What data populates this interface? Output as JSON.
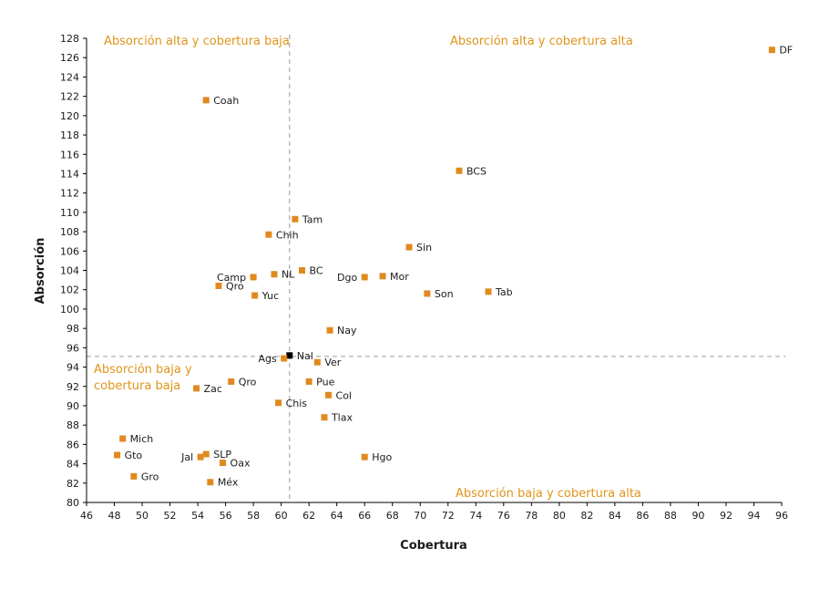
{
  "chart_data": {
    "type": "scatter",
    "xlabel": "Cobertura",
    "ylabel": "Absorción",
    "xlim": [
      46,
      96
    ],
    "ylim": [
      80,
      128
    ],
    "x_ticks": [
      46,
      48,
      50,
      52,
      54,
      56,
      58,
      60,
      62,
      64,
      66,
      68,
      70,
      72,
      74,
      76,
      78,
      80,
      82,
      84,
      86,
      88,
      90,
      92,
      94,
      96
    ],
    "y_ticks": [
      80,
      82,
      84,
      86,
      88,
      90,
      92,
      94,
      96,
      98,
      100,
      102,
      104,
      106,
      108,
      110,
      112,
      114,
      116,
      118,
      120,
      122,
      124,
      126,
      128
    ],
    "reference_lines": {
      "x": 60.6,
      "y": 95.1
    },
    "quadrant_labels": {
      "top_left": "Absorción alta y cobertura baja",
      "top_right": "Absorción alta y cobertura alta",
      "bottom_left_line1": "Absorción baja y",
      "bottom_left_line2": "cobertura baja",
      "bottom_right": "Absorción baja y cobertura alta"
    },
    "colors": {
      "point": "#e08a1e",
      "national": "#000000",
      "quadrant_text": "#e0941a",
      "reference_line": "#999999"
    },
    "points": [
      {
        "label": "DF",
        "x": 95.3,
        "y": 126.8
      },
      {
        "label": "Coah",
        "x": 54.6,
        "y": 121.6
      },
      {
        "label": "BCS",
        "x": 72.8,
        "y": 114.3
      },
      {
        "label": "Tam",
        "x": 61.0,
        "y": 109.3
      },
      {
        "label": "Chih",
        "x": 59.1,
        "y": 107.7
      },
      {
        "label": "Sin",
        "x": 69.2,
        "y": 106.4
      },
      {
        "label": "BC",
        "x": 61.5,
        "y": 104.0
      },
      {
        "label": "NL",
        "x": 59.5,
        "y": 103.6
      },
      {
        "label": "Camp",
        "x": 58.0,
        "y": 103.3
      },
      {
        "label": "Dgo",
        "x": 66.0,
        "y": 103.3
      },
      {
        "label": "Mor",
        "x": 67.3,
        "y": 103.4
      },
      {
        "label": "Qro",
        "x": 55.5,
        "y": 102.4
      },
      {
        "label": "Son",
        "x": 70.5,
        "y": 101.6
      },
      {
        "label": "Tab",
        "x": 74.9,
        "y": 101.8
      },
      {
        "label": "Yuc",
        "x": 58.1,
        "y": 101.4
      },
      {
        "label": "Nay",
        "x": 63.5,
        "y": 97.8
      },
      {
        "label": "Nal",
        "x": 60.6,
        "y": 95.2,
        "national": true
      },
      {
        "label": "Ags",
        "x": 60.2,
        "y": 94.9
      },
      {
        "label": "Ver",
        "x": 62.6,
        "y": 94.5
      },
      {
        "label": "Qro",
        "x": 56.4,
        "y": 92.5
      },
      {
        "label": "Pue",
        "x": 62.0,
        "y": 92.5
      },
      {
        "label": "Zac",
        "x": 53.9,
        "y": 91.8
      },
      {
        "label": "Col",
        "x": 63.4,
        "y": 91.1
      },
      {
        "label": "Chis",
        "x": 59.8,
        "y": 90.3
      },
      {
        "label": "Tlax",
        "x": 63.1,
        "y": 88.8
      },
      {
        "label": "Mich",
        "x": 48.6,
        "y": 86.6
      },
      {
        "label": "Gto",
        "x": 48.2,
        "y": 84.9
      },
      {
        "label": "SLP",
        "x": 54.6,
        "y": 85.0
      },
      {
        "label": "Jal",
        "x": 54.2,
        "y": 84.7
      },
      {
        "label": "Hgo",
        "x": 66.0,
        "y": 84.7
      },
      {
        "label": "Oax",
        "x": 55.8,
        "y": 84.1
      },
      {
        "label": "Gro",
        "x": 49.4,
        "y": 82.7
      },
      {
        "label": "Méx",
        "x": 54.9,
        "y": 82.1
      }
    ]
  }
}
